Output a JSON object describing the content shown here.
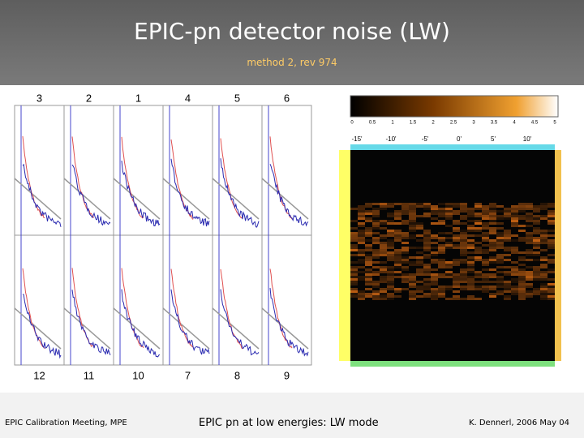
{
  "header": {
    "title": "EPIC-pn detector noise (LW)",
    "subtitle": "method 2, rev 974"
  },
  "figure": {
    "left": {
      "top_labels": [
        "3",
        "2",
        "1",
        "4",
        "5",
        "6"
      ],
      "bottom_labels": [
        "12",
        "11",
        "10",
        "7",
        "8",
        "9"
      ]
    },
    "right": {
      "colorbar_ticks": [
        "0",
        "0.5",
        "1",
        "1.5",
        "2",
        "2.5",
        "3",
        "3.5",
        "4",
        "4.5",
        "5"
      ],
      "x_labels": [
        "-15'",
        "-10'",
        "-5'",
        "0'",
        "5'",
        "10'"
      ]
    }
  },
  "footer": {
    "left": "EPIC Calibration Meeting, MPE",
    "center": "EPIC pn at low energies: LW mode",
    "right": "K. Dennerl, 2006 May 04"
  }
}
